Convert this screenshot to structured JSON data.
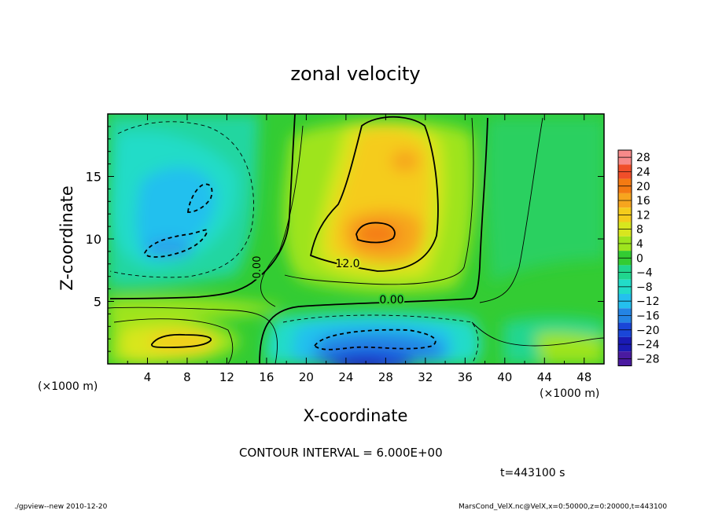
{
  "chart_data": {
    "type": "heatmap",
    "title": "zonal velocity",
    "xlabel": "X-coordinate",
    "ylabel": "Z-coordinate",
    "x_unit_label": "(×1000 m)",
    "x_unit_label_right": "(×1000 m)",
    "xlim": [
      0,
      50
    ],
    "ylim": [
      0,
      20
    ],
    "x_ticks": [
      4,
      8,
      12,
      16,
      20,
      24,
      28,
      32,
      36,
      40,
      44,
      48
    ],
    "y_ticks": [
      5,
      10,
      15
    ],
    "colorbar_levels": [
      28,
      24,
      20,
      16,
      12,
      8,
      4,
      0,
      -4,
      -8,
      -12,
      -16,
      -20,
      -24,
      -28
    ],
    "colorbar_colors": [
      "#f78a8a",
      "#f04e2a",
      "#f47a12",
      "#f7a51e",
      "#f5cc1c",
      "#d8e61e",
      "#9ee41e",
      "#33cc33",
      "#20d68e",
      "#22dcc8",
      "#24c0ee",
      "#2484e4",
      "#1a46d8",
      "#1a1ab4",
      "#4a1aa0"
    ],
    "contour_labels": [
      "0.00",
      "12.0",
      "0.00"
    ],
    "contour_interval_text": "CONTOUR INTERVAL = 6.000E+00",
    "time_text": "t=443100 s",
    "features": [
      {
        "kind": "max",
        "x": 27.5,
        "z": 10.2,
        "value": 18
      },
      {
        "kind": "max",
        "x": 27.5,
        "z": 15.5,
        "value": 13
      },
      {
        "kind": "max",
        "x": 7.5,
        "z": 2.0,
        "value": 13
      },
      {
        "kind": "min",
        "x": 26.5,
        "z": 0.5,
        "value": -22
      },
      {
        "kind": "min",
        "x": 6.5,
        "z": 9.5,
        "value": -11
      },
      {
        "kind": "min",
        "x": 9.0,
        "z": 13.5,
        "value": -10
      }
    ]
  },
  "footer": {
    "left": "./gpview--new  2010-12-20",
    "right": "MarsCond_VelX.nc@VelX,x=0:50000,z=0:20000,t=443100"
  }
}
